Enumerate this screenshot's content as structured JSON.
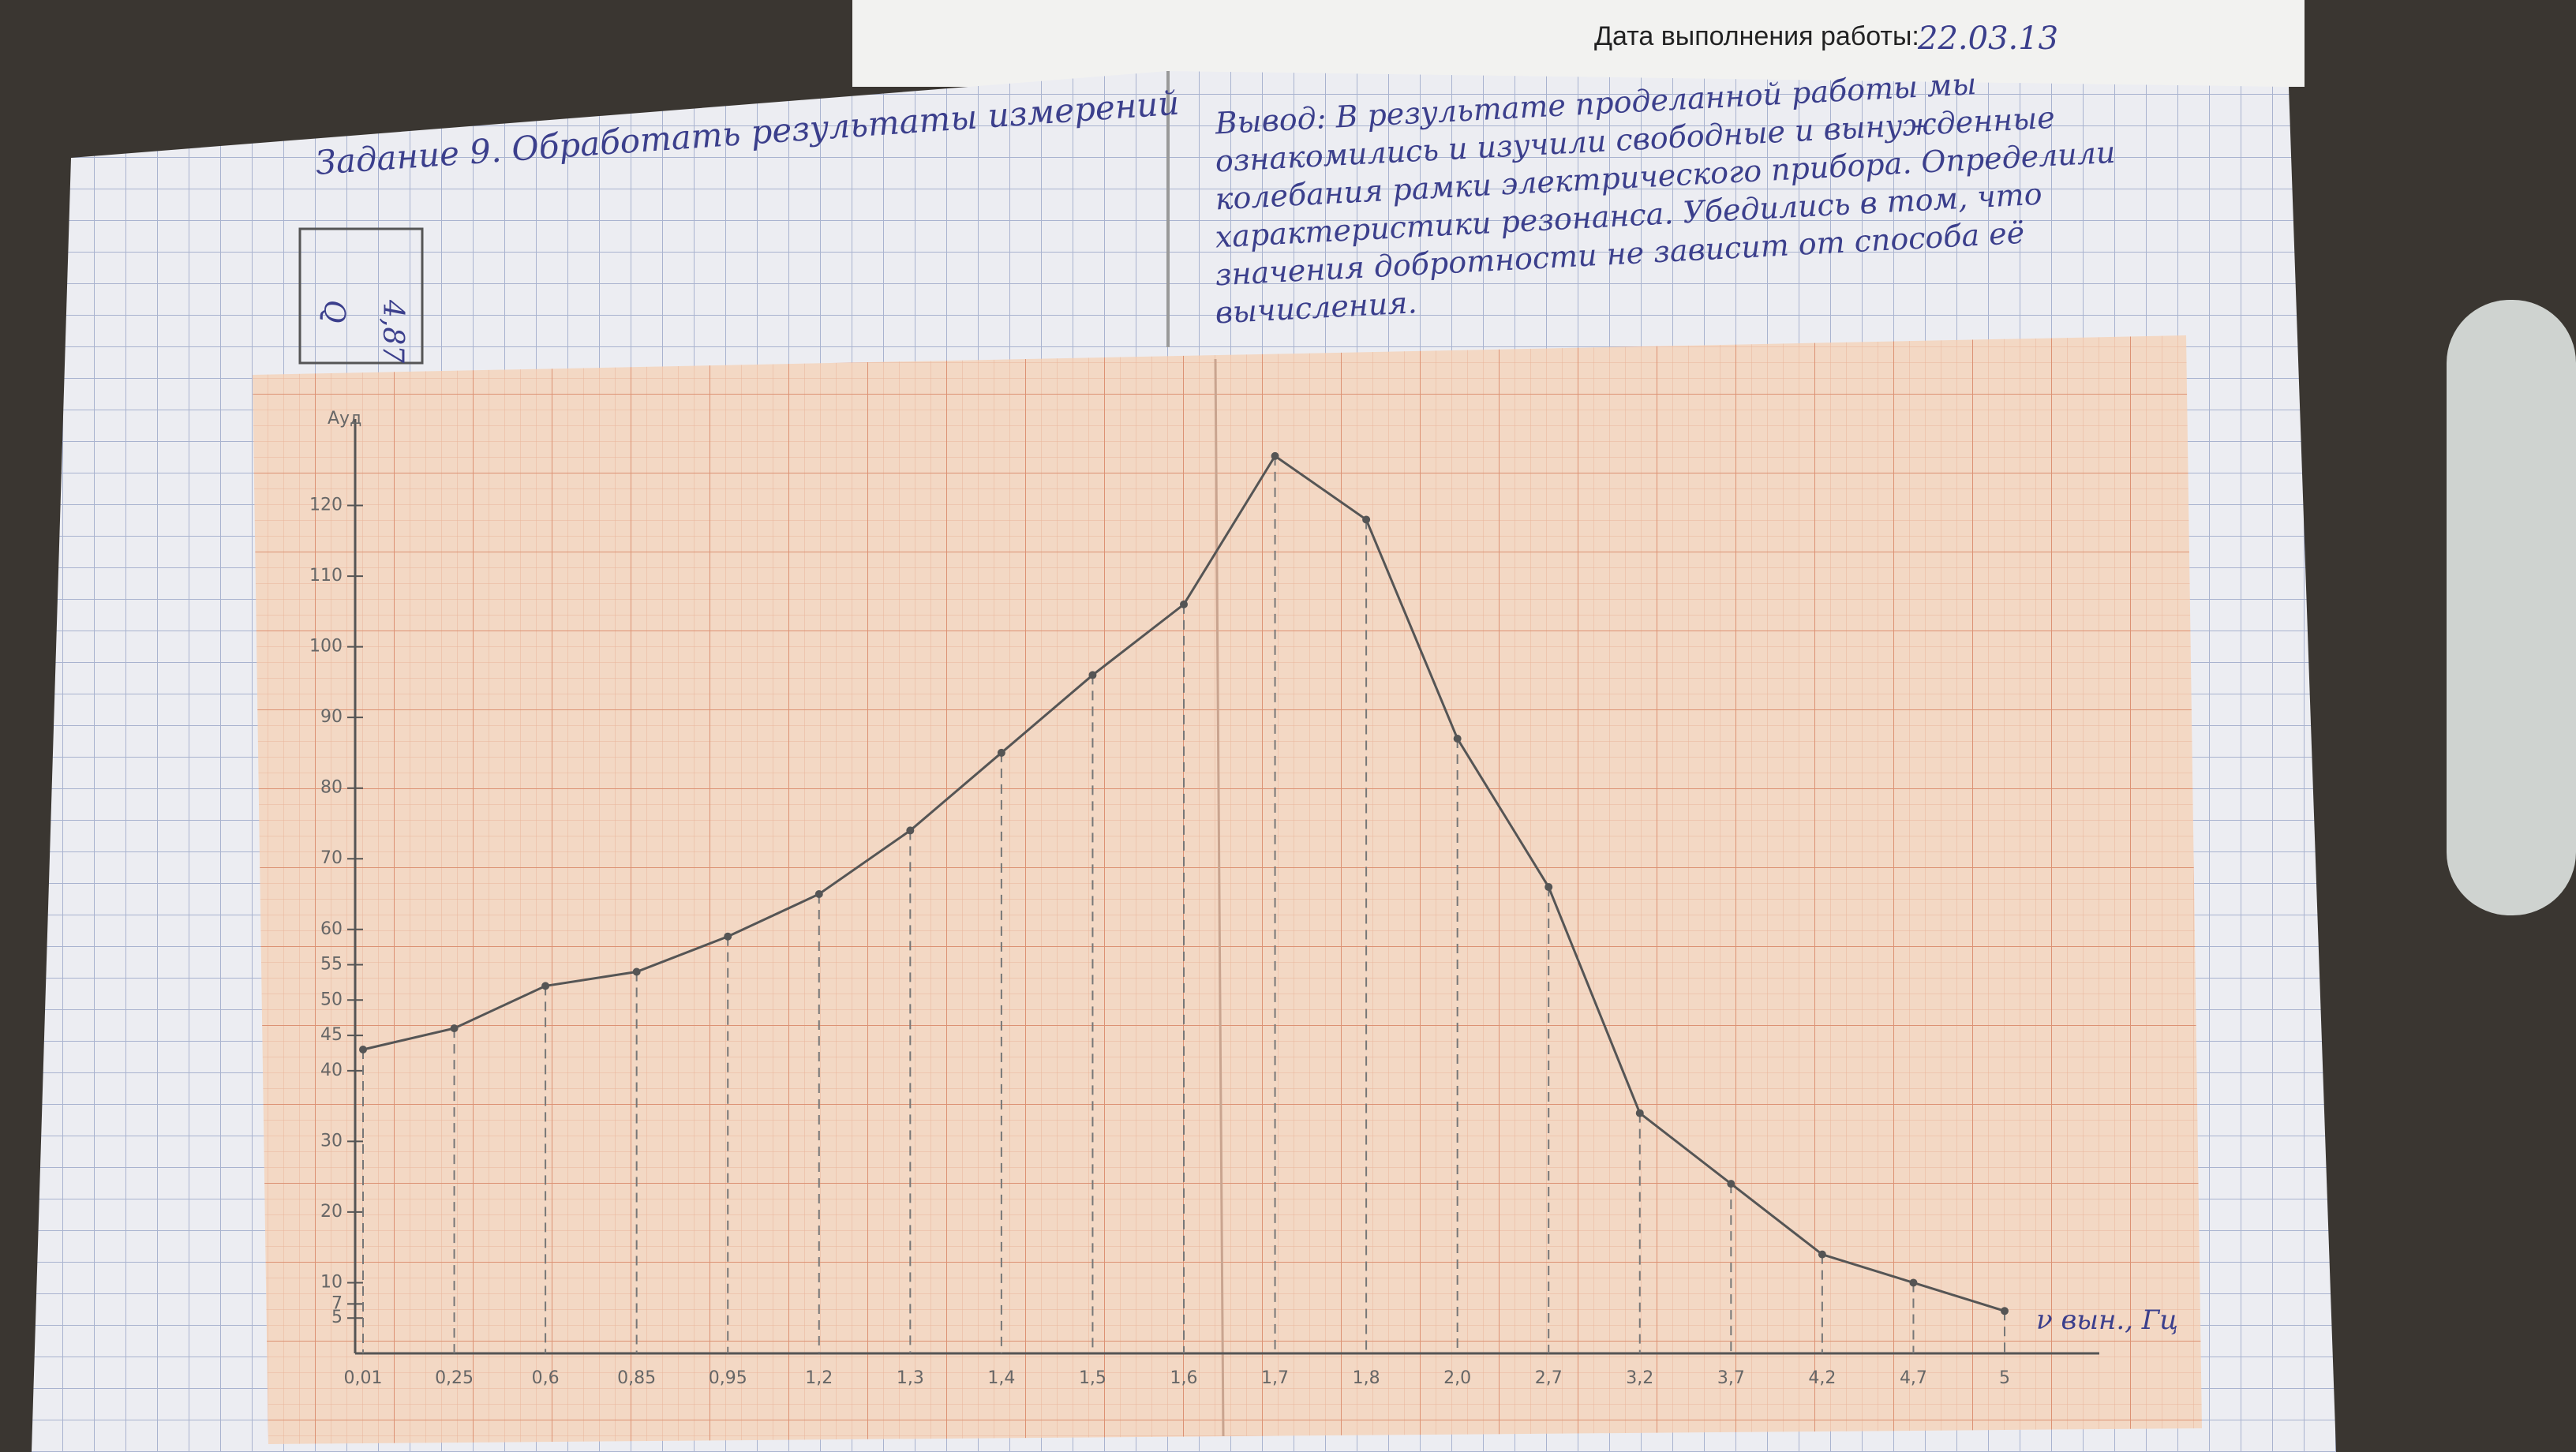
{
  "header": {
    "date_label": "Дата выполнения работы:",
    "date": "22.03.13"
  },
  "notebook": {
    "task": "Задание 9. Обработать результаты измерений",
    "table": {
      "header": "Q",
      "value": "4,87"
    },
    "conclusion": [
      "Вывод: В результате проделанной работы мы",
      "ознакомились и изучили свободные и вынужденные",
      "колебания рамки электрического прибора. Определили",
      "характеристики резонанса. Убедились в том, что",
      "значения добротности не зависит от способа её",
      "вычисления."
    ]
  },
  "chart_data": {
    "type": "line",
    "y_label": "Ауд",
    "x_label": "ν вын., Гц",
    "categories": [
      "0,01",
      "0,25",
      "0,6",
      "0,85",
      "0,95",
      "1,2",
      "1,3",
      "1,4",
      "1,5",
      "1,6",
      "1,7",
      "1,8",
      "2,0",
      "2,7",
      "3,2",
      "3,7",
      "4,2",
      "4,7",
      "5"
    ],
    "values": [
      43,
      46,
      52,
      54,
      59,
      65,
      74,
      85,
      96,
      106,
      127,
      118,
      87,
      66,
      34,
      24,
      14,
      10,
      6
    ],
    "color": "#555555",
    "ylim": [
      0,
      130
    ],
    "yticks": [
      5,
      7,
      10,
      20,
      30,
      40,
      45,
      50,
      55,
      60,
      70,
      80,
      90,
      100,
      110,
      120
    ]
  }
}
